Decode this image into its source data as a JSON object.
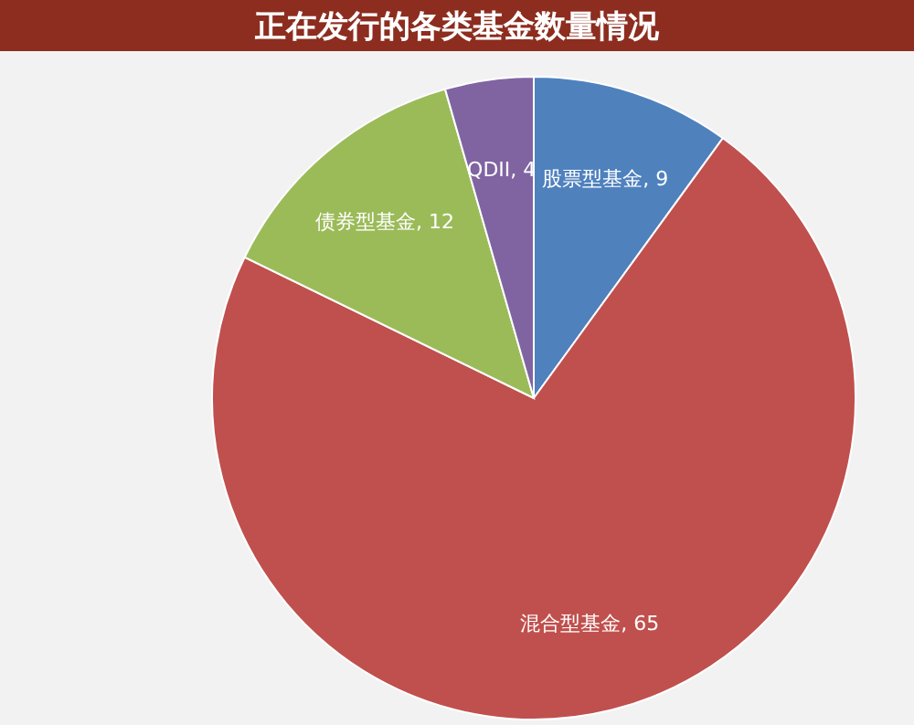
{
  "chart_data": {
    "type": "pie",
    "title": "正在发行的各类基金数量情况",
    "categories": [
      "股票型基金",
      "混合型基金",
      "债券型基金",
      "QDII"
    ],
    "values": [
      9,
      65,
      12,
      4
    ],
    "colors": [
      "#4f81bd",
      "#c0504d",
      "#9bbb59",
      "#8064a2"
    ],
    "value_labels": [
      ", 9",
      ", 65",
      ", 12",
      ", 4"
    ]
  }
}
